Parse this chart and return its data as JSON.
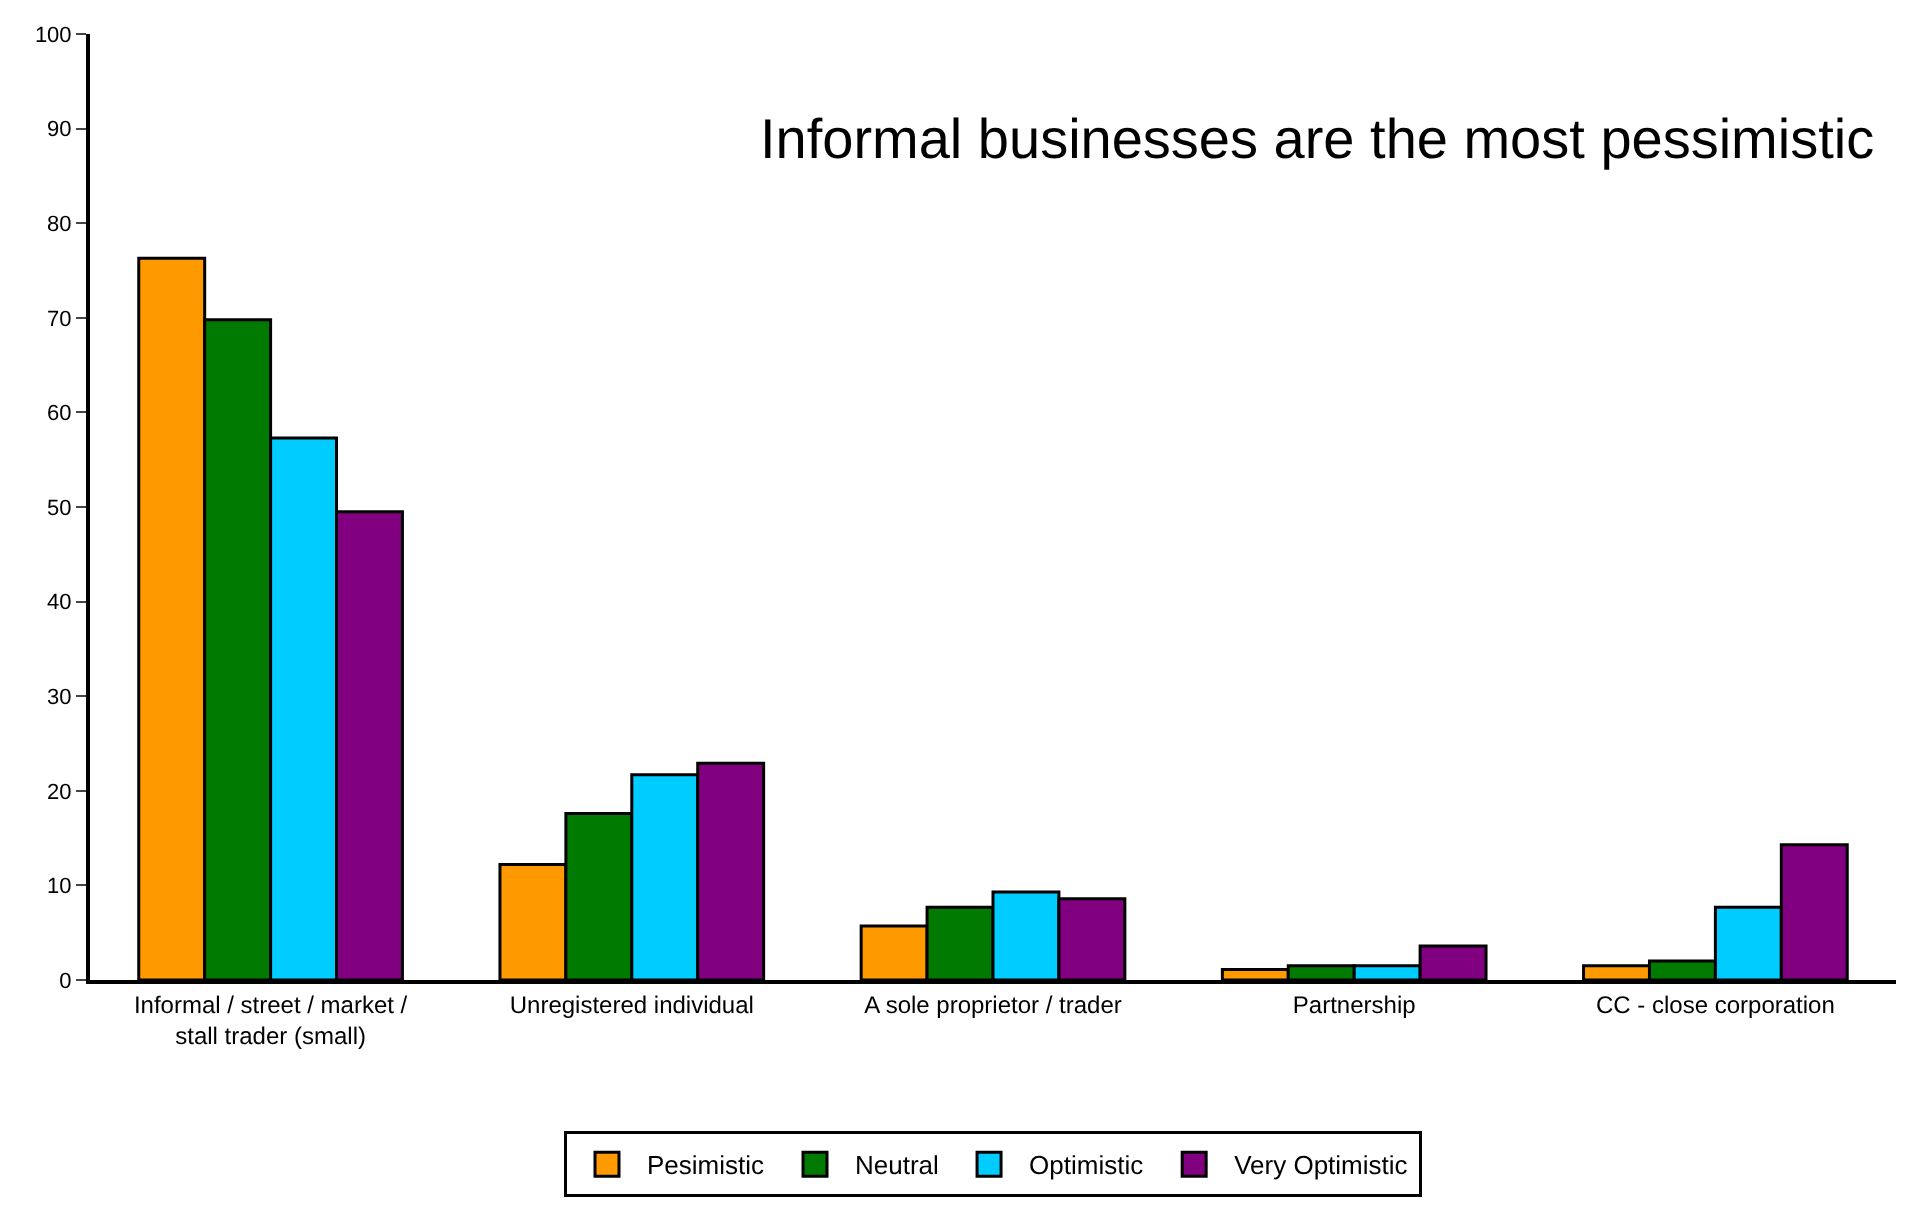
{
  "chart_data": {
    "type": "bar",
    "title": "Informal businesses are the most pessimistic",
    "categories": [
      "Informal / street / market / stall trader (small)",
      "Unregistered individual",
      "A sole proprietor / trader",
      "Partnership",
      "CC - close corporation"
    ],
    "series": [
      {
        "name": "Pesimistic",
        "color": "#ff9900",
        "values": [
          76.3,
          12.2,
          5.7,
          1.1,
          1.5
        ]
      },
      {
        "name": "Neutral",
        "color": "#007a00",
        "values": [
          69.8,
          17.6,
          7.7,
          1.5,
          2.0
        ]
      },
      {
        "name": "Optimistic",
        "color": "#00ccff",
        "values": [
          57.3,
          21.7,
          9.3,
          1.5,
          7.7
        ]
      },
      {
        "name": "Very Optimistic",
        "color": "#800080",
        "values": [
          49.5,
          22.9,
          8.6,
          3.6,
          14.3
        ]
      }
    ],
    "ylim": [
      0,
      100
    ],
    "yticks": [
      0,
      10,
      20,
      30,
      40,
      50,
      60,
      70,
      80,
      90,
      100
    ],
    "legend": "bottom"
  }
}
